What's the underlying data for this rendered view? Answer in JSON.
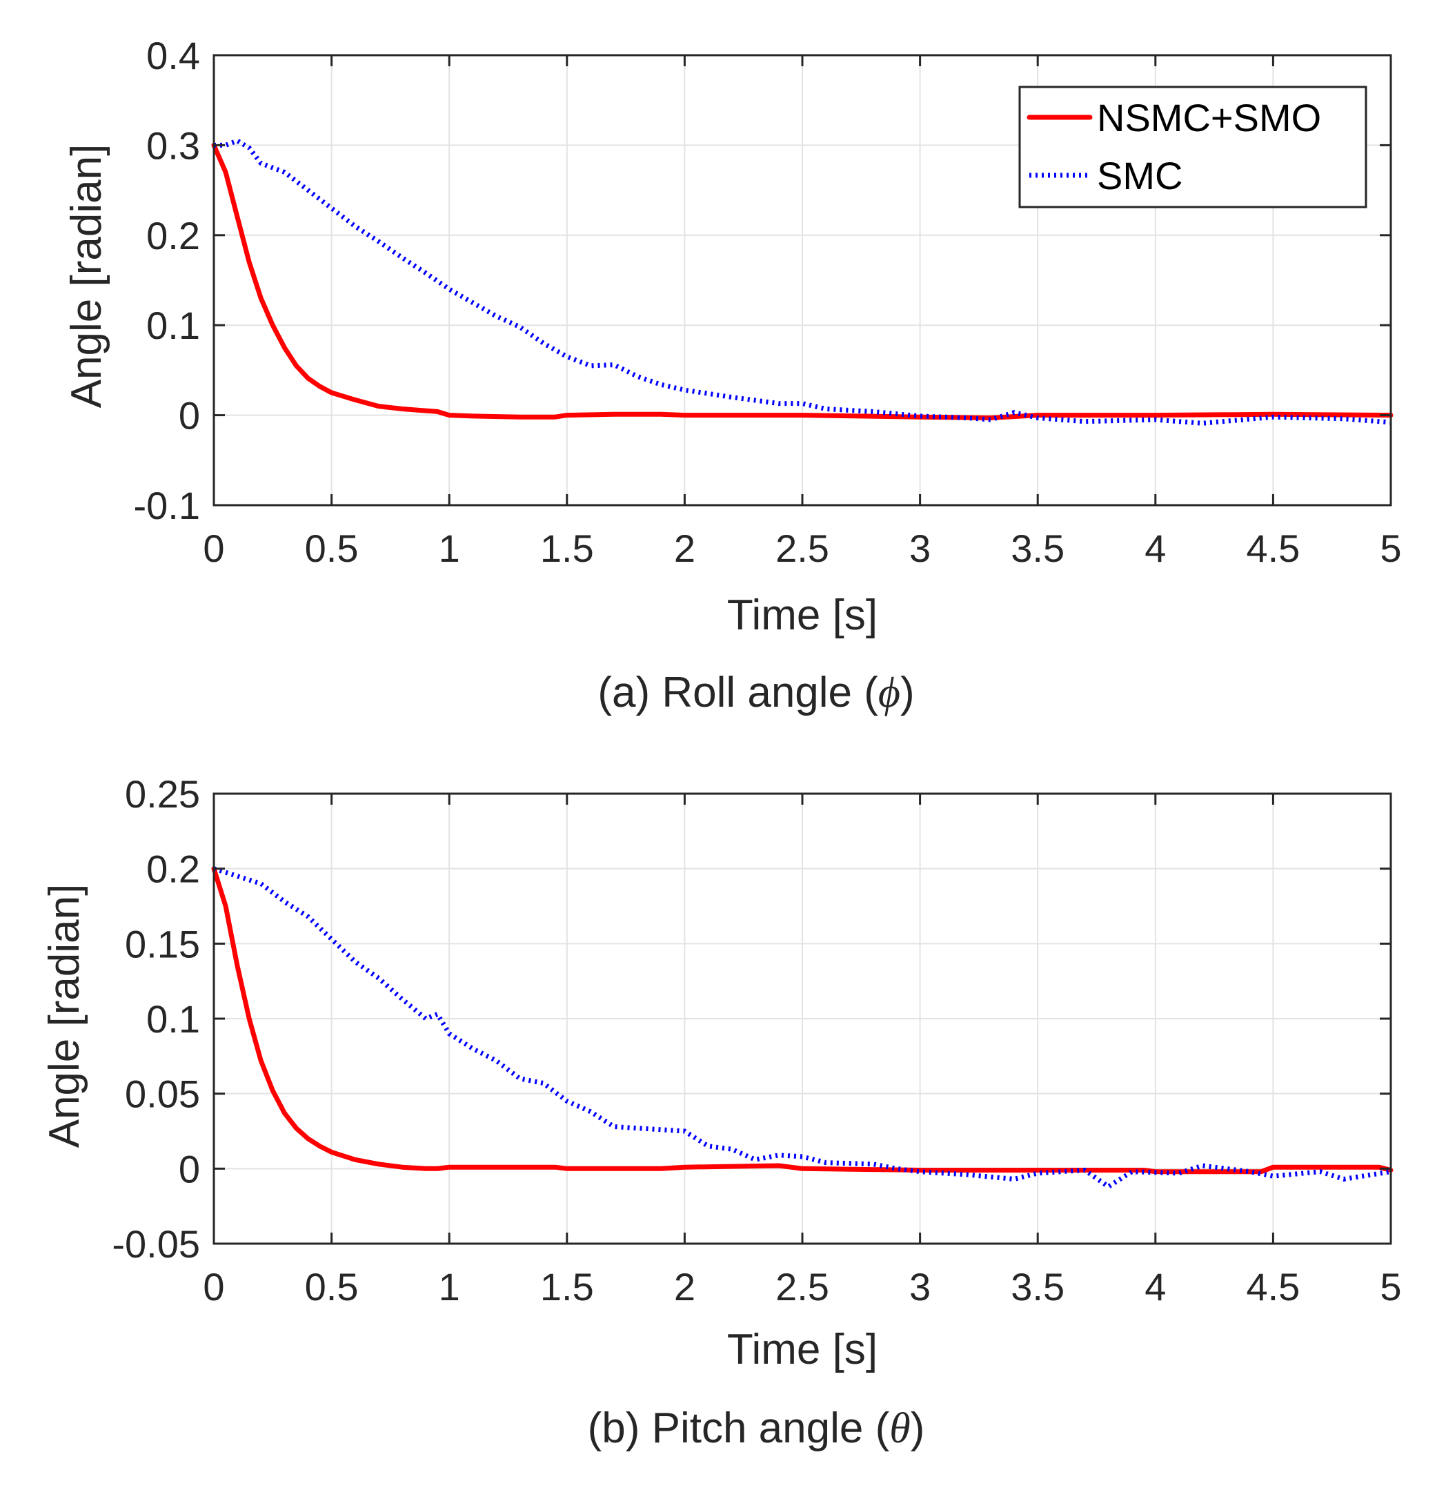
{
  "colors": {
    "nsmc_smo": "#ff0000",
    "smc": "#0000ff",
    "grid": "#e3e3e3",
    "axis": "#262626",
    "background": "#ffffff"
  },
  "legend": {
    "entries": [
      "NSMC+SMO",
      "SMC"
    ]
  },
  "chart_data": [
    {
      "type": "line",
      "caption_prefix": "(a) Roll angle (",
      "caption_symbol": "ϕ",
      "caption_suffix": ")",
      "xlabel": "Time [s]",
      "ylabel": "Angle [radian]",
      "xlim": [
        0,
        5
      ],
      "ylim": [
        -0.1,
        0.4
      ],
      "xticks": [
        0,
        0.5,
        1,
        1.5,
        2,
        2.5,
        3,
        3.5,
        4,
        4.5,
        5
      ],
      "xtick_labels": [
        "0",
        "0.5",
        "1",
        "1.5",
        "2",
        "2.5",
        "3",
        "3.5",
        "4",
        "4.5",
        "5"
      ],
      "yticks": [
        -0.1,
        0,
        0.1,
        0.2,
        0.3,
        0.4
      ],
      "ytick_labels": [
        "-0.1",
        "0",
        "0.1",
        "0.2",
        "0.3",
        "0.4"
      ],
      "grid": true,
      "legend_position": "top-right",
      "series": [
        {
          "name": "NSMC+SMO",
          "style": "solid",
          "x": [
            0,
            0.05,
            0.1,
            0.15,
            0.2,
            0.25,
            0.3,
            0.35,
            0.4,
            0.45,
            0.5,
            0.55,
            0.6,
            0.7,
            0.8,
            0.9,
            0.95,
            1.0,
            1.1,
            1.3,
            1.45,
            1.5,
            1.7,
            1.9,
            2.0,
            2.5,
            3.0,
            3.3,
            3.5,
            4.0,
            4.5,
            5.0
          ],
          "y": [
            0.3,
            0.27,
            0.22,
            0.17,
            0.13,
            0.1,
            0.075,
            0.055,
            0.041,
            0.032,
            0.025,
            0.021,
            0.017,
            0.01,
            0.007,
            0.005,
            0.004,
            0.0,
            -0.001,
            -0.002,
            -0.002,
            0.0,
            0.001,
            0.001,
            0.0,
            0.0,
            -0.002,
            -0.003,
            0.0,
            0.0,
            0.001,
            0.0
          ]
        },
        {
          "name": "SMC",
          "style": "dotted",
          "x": [
            0,
            0.05,
            0.1,
            0.15,
            0.2,
            0.3,
            0.4,
            0.5,
            0.6,
            0.7,
            0.8,
            0.9,
            1.0,
            1.1,
            1.2,
            1.3,
            1.4,
            1.5,
            1.6,
            1.7,
            1.8,
            1.9,
            2.0,
            2.2,
            2.4,
            2.5,
            2.6,
            2.8,
            3.0,
            3.2,
            3.3,
            3.4,
            3.5,
            3.7,
            4.0,
            4.2,
            4.5,
            4.8,
            5.0
          ],
          "y": [
            0.3,
            0.3,
            0.305,
            0.297,
            0.28,
            0.27,
            0.25,
            0.23,
            0.21,
            0.193,
            0.175,
            0.158,
            0.14,
            0.125,
            0.11,
            0.098,
            0.08,
            0.065,
            0.055,
            0.056,
            0.043,
            0.034,
            0.028,
            0.02,
            0.013,
            0.013,
            0.007,
            0.004,
            -0.001,
            -0.003,
            -0.005,
            0.003,
            -0.003,
            -0.007,
            -0.005,
            -0.009,
            -0.002,
            -0.004,
            -0.008
          ]
        }
      ]
    },
    {
      "type": "line",
      "caption_prefix": "(b) Pitch angle (",
      "caption_symbol": "θ",
      "caption_suffix": ")",
      "xlabel": "Time [s]",
      "ylabel": "Angle [radian]",
      "xlim": [
        0,
        5
      ],
      "ylim": [
        -0.05,
        0.25
      ],
      "xticks": [
        0,
        0.5,
        1,
        1.5,
        2,
        2.5,
        3,
        3.5,
        4,
        4.5,
        5
      ],
      "xtick_labels": [
        "0",
        "0.5",
        "1",
        "1.5",
        "2",
        "2.5",
        "3",
        "3.5",
        "4",
        "4.5",
        "5"
      ],
      "yticks": [
        -0.05,
        0,
        0.05,
        0.1,
        0.15,
        0.2,
        0.25
      ],
      "ytick_labels": [
        "-0.05",
        "0",
        "0.05",
        "0.1",
        "0.15",
        "0.2",
        "0.25"
      ],
      "grid": true,
      "series": [
        {
          "name": "NSMC+SMO",
          "style": "solid",
          "x": [
            0,
            0.05,
            0.1,
            0.15,
            0.2,
            0.25,
            0.3,
            0.35,
            0.4,
            0.45,
            0.5,
            0.6,
            0.7,
            0.8,
            0.9,
            0.95,
            1.0,
            1.2,
            1.45,
            1.5,
            1.9,
            2.0,
            2.4,
            2.5,
            3.0,
            3.5,
            3.95,
            4.0,
            4.45,
            4.5,
            4.95,
            5.0
          ],
          "y": [
            0.2,
            0.175,
            0.135,
            0.1,
            0.072,
            0.052,
            0.037,
            0.027,
            0.02,
            0.015,
            0.011,
            0.006,
            0.003,
            0.001,
            0.0,
            0.0,
            0.001,
            0.001,
            0.001,
            0.0,
            0.0,
            0.001,
            0.002,
            0.0,
            -0.001,
            -0.001,
            -0.001,
            -0.002,
            -0.002,
            0.001,
            0.001,
            -0.001
          ]
        },
        {
          "name": "SMC",
          "style": "dotted",
          "x": [
            0,
            0.1,
            0.2,
            0.3,
            0.4,
            0.5,
            0.6,
            0.7,
            0.8,
            0.9,
            0.95,
            1.0,
            1.1,
            1.2,
            1.3,
            1.4,
            1.5,
            1.6,
            1.7,
            1.8,
            1.9,
            2.0,
            2.1,
            2.2,
            2.3,
            2.4,
            2.5,
            2.6,
            2.8,
            2.9,
            3.0,
            3.2,
            3.4,
            3.5,
            3.7,
            3.8,
            3.9,
            4.1,
            4.2,
            4.4,
            4.5,
            4.7,
            4.8,
            5.0
          ],
          "y": [
            0.2,
            0.195,
            0.19,
            0.178,
            0.168,
            0.153,
            0.138,
            0.127,
            0.113,
            0.1,
            0.103,
            0.09,
            0.08,
            0.072,
            0.06,
            0.057,
            0.045,
            0.038,
            0.028,
            0.027,
            0.026,
            0.025,
            0.015,
            0.013,
            0.006,
            0.009,
            0.008,
            0.004,
            0.003,
            0.0,
            -0.002,
            -0.004,
            -0.007,
            -0.003,
            -0.001,
            -0.012,
            -0.002,
            -0.003,
            0.002,
            -0.002,
            -0.005,
            -0.002,
            -0.007,
            -0.002
          ]
        }
      ]
    }
  ]
}
